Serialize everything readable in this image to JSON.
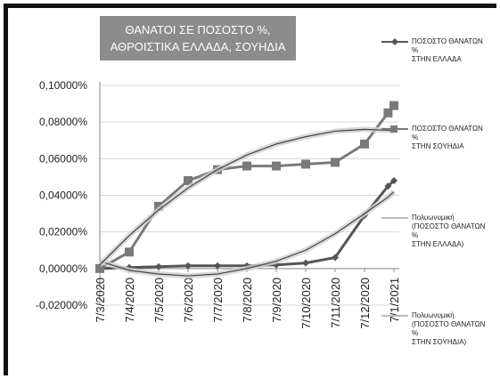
{
  "chart_data": {
    "type": "line",
    "title": "ΘΑΝΑΤΟΙ ΣΕ ΠΟΣΟΣΤΟ %,\nΑΘΡΟΙΣΤΙΚΑ ΕΛΛΑΔΑ, ΣΟΥΗΔΙΑ",
    "categories": [
      "7/3/2020",
      "7/4/2020",
      "7/5/2020",
      "7/6/2020",
      "7/7/2020",
      "7/8/2020",
      "7/9/2020",
      "7/10/2020",
      "7/11/2020",
      "7/12/2020",
      null,
      "7/1/2021"
    ],
    "series": [
      {
        "name": "ΠΟΣΟΣΤΟ ΘΑΝΑΤΩΝ\n%\nΣΤΗΝ ΕΛΛΑΔΑ",
        "color": "#555555",
        "marker": "diamond",
        "values": [
          0,
          0.0005,
          0.001,
          0.0015,
          0.0015,
          0.0015,
          0.002,
          0.003,
          0.006,
          0.029,
          0.045,
          0.048
        ]
      },
      {
        "name": "ΠΟΣΟΣΤΟ ΘΑΝΑΤΩΝ\n%\nΣΤΗΝ ΣΟΥΗΔΙΑ",
        "color": "#7a7a7a",
        "marker": "square",
        "values": [
          0,
          0.009,
          0.034,
          0.048,
          0.054,
          0.056,
          0.056,
          0.057,
          0.058,
          0.068,
          0.085,
          0.089
        ]
      },
      {
        "name": "Πολυωνυμική\n(ΠΟΣΟΣΤΟ ΘΑΝΑΤΩΝ\n%\nΣΤΗΝ ΕΛΛΑΔΑ)",
        "color": "#444444",
        "marker": "none",
        "values": [
          0.004,
          -0.001,
          -0.003,
          -0.004,
          -0.003,
          0,
          0.004,
          0.01,
          0.019,
          0.03,
          0.039,
          0.042
        ]
      },
      {
        "name": "Πολυωνυμική\n(ΠΟΣΟΣΤΟ ΘΑΝΑΤΩΝ\n%\nΣΤΗΝ ΣΟΥΗΔΙΑ)",
        "color": "#444444",
        "marker": "none",
        "values": [
          0.002,
          0.018,
          0.032,
          0.044,
          0.054,
          0.062,
          0.068,
          0.072,
          0.075,
          0.076,
          0.0755,
          0.075
        ]
      }
    ],
    "ylim": [
      -0.02,
      0.1
    ],
    "yticks": [
      {
        "value": -0.02,
        "label": "-0,02000%"
      },
      {
        "value": 0,
        "label": "0,00000%"
      },
      {
        "value": 0.02,
        "label": "0,02000%"
      },
      {
        "value": 0.04,
        "label": "0,04000%"
      },
      {
        "value": 0.06,
        "label": "0,06000%"
      },
      {
        "value": 0.08,
        "label": "0,08000%"
      },
      {
        "value": 0.1,
        "label": "0,10000%"
      }
    ],
    "grid": true
  }
}
